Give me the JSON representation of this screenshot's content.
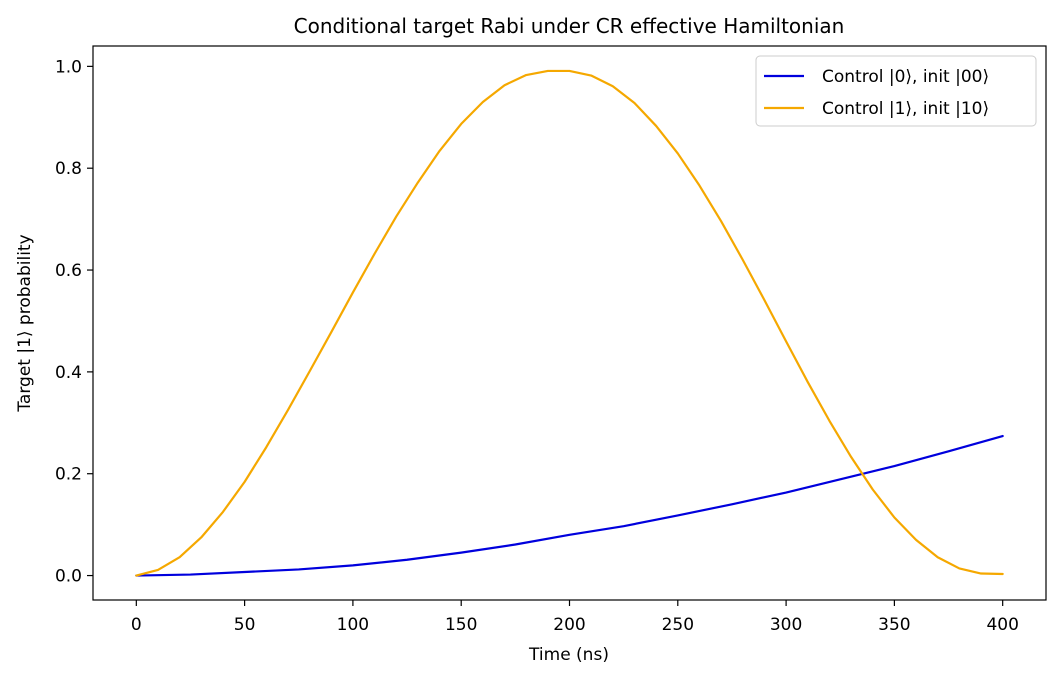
{
  "chart_data": {
    "type": "line",
    "title": "Conditional target Rabi under CR effective Hamiltonian",
    "xlabel": "Time (ns)",
    "ylabel": "Target |1⟩ probability",
    "xlim": [
      -20,
      420
    ],
    "ylim": [
      -0.048,
      1.04
    ],
    "xticks": [
      0,
      50,
      100,
      150,
      200,
      250,
      300,
      350,
      400
    ],
    "xtick_labels": [
      "0",
      "50",
      "100",
      "150",
      "200",
      "250",
      "300",
      "350",
      "400"
    ],
    "yticks": [
      0.0,
      0.2,
      0.4,
      0.6,
      0.8,
      1.0
    ],
    "ytick_labels": [
      "0.0",
      "0.2",
      "0.4",
      "0.6",
      "0.8",
      "1.0"
    ],
    "grid": false,
    "legend_position": "top-right",
    "series": [
      {
        "name": "Control |0⟩, init |00⟩",
        "color": "#0000dd",
        "x": [
          0,
          25,
          50,
          75,
          100,
          125,
          150,
          175,
          200,
          225,
          250,
          275,
          300,
          325,
          350,
          375,
          400
        ],
        "y": [
          0.0,
          0.002,
          0.007,
          0.012,
          0.02,
          0.031,
          0.045,
          0.061,
          0.08,
          0.097,
          0.118,
          0.14,
          0.163,
          0.189,
          0.215,
          0.244,
          0.274
        ]
      },
      {
        "name": "Control |1⟩, init |10⟩",
        "color": "#f5a800",
        "x": [
          0,
          10,
          20,
          30,
          40,
          50,
          60,
          70,
          80,
          90,
          100,
          110,
          120,
          130,
          140,
          150,
          160,
          170,
          180,
          190,
          200,
          210,
          220,
          230,
          240,
          250,
          260,
          270,
          280,
          290,
          300,
          310,
          320,
          330,
          340,
          350,
          360,
          370,
          380,
          390,
          400
        ],
        "y": [
          0.0,
          0.011,
          0.036,
          0.075,
          0.125,
          0.184,
          0.252,
          0.325,
          0.401,
          0.478,
          0.556,
          0.632,
          0.705,
          0.772,
          0.834,
          0.887,
          0.93,
          0.963,
          0.983,
          0.991,
          0.991,
          0.982,
          0.961,
          0.928,
          0.883,
          0.829,
          0.766,
          0.696,
          0.62,
          0.541,
          0.46,
          0.38,
          0.304,
          0.233,
          0.169,
          0.114,
          0.07,
          0.036,
          0.014,
          0.004,
          0.003
        ]
      }
    ]
  }
}
